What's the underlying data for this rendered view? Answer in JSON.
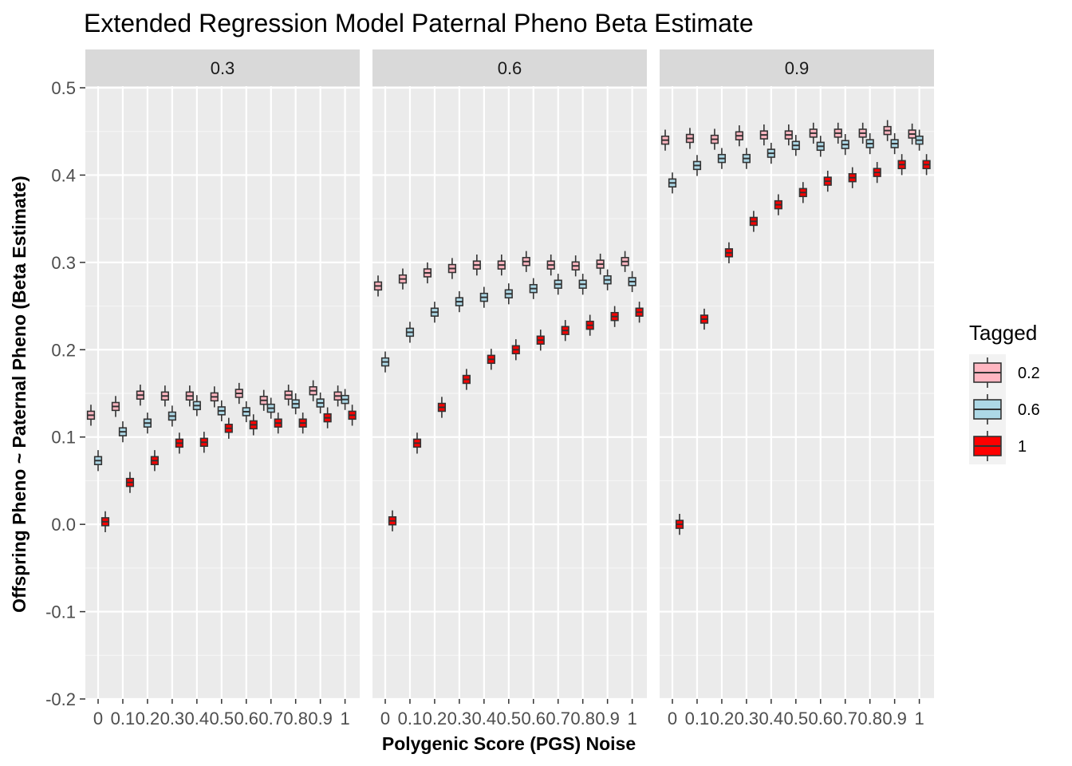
{
  "chart_data": {
    "type": "boxplot",
    "title": "Extended Regression Model Paternal Pheno Beta Estimate",
    "xlabel": "Polygenic Score (PGS) Noise",
    "ylabel": "Offspring Pheno ~ Paternal Pheno (Beta Estimate)",
    "ylim": [
      -0.2,
      0.5
    ],
    "y_ticks": [
      "-0.2",
      "-0.1",
      "0.0",
      "0.1",
      "0.2",
      "0.3",
      "0.4",
      "0.5"
    ],
    "categories": [
      "0",
      "0.1",
      "0.2",
      "0.3",
      "0.4",
      "0.5",
      "0.6",
      "0.7",
      "0.8",
      "0.9",
      "1"
    ],
    "facets": [
      "0.3",
      "0.6",
      "0.9"
    ],
    "legend": {
      "title": "Tagged",
      "position": "right",
      "entries": [
        {
          "label": "0.2",
          "color": "#FFB6C1"
        },
        {
          "label": "0.6",
          "color": "#ADD8E6"
        },
        {
          "label": "1",
          "color": "#FF0000"
        }
      ]
    },
    "grid": true,
    "series": [
      {
        "name": "0.2",
        "color": "#FFB6C1",
        "medians": {
          "0.3": [
            0.125,
            0.135,
            0.148,
            0.147,
            0.147,
            0.146,
            0.15,
            0.142,
            0.148,
            0.153,
            0.147
          ],
          "0.6": [
            0.273,
            0.281,
            0.288,
            0.293,
            0.297,
            0.297,
            0.301,
            0.297,
            0.296,
            0.298,
            0.301
          ],
          "0.9": [
            0.44,
            0.442,
            0.441,
            0.445,
            0.446,
            0.446,
            0.448,
            0.448,
            0.448,
            0.451,
            0.447
          ]
        }
      },
      {
        "name": "0.6",
        "color": "#ADD8E6",
        "medians": {
          "0.3": [
            0.073,
            0.106,
            0.116,
            0.124,
            0.136,
            0.13,
            0.129,
            0.133,
            0.138,
            0.139,
            0.143
          ],
          "0.6": [
            0.186,
            0.22,
            0.243,
            0.255,
            0.26,
            0.264,
            0.27,
            0.275,
            0.275,
            0.28,
            0.278
          ],
          "0.9": [
            0.391,
            0.411,
            0.419,
            0.419,
            0.425,
            0.434,
            0.433,
            0.435,
            0.436,
            0.436,
            0.44
          ]
        }
      },
      {
        "name": "1",
        "color": "#FF0000",
        "medians": {
          "0.3": [
            0.003,
            0.048,
            0.073,
            0.093,
            0.094,
            0.11,
            0.114,
            0.116,
            0.116,
            0.122,
            0.125
          ],
          "0.6": [
            0.004,
            0.093,
            0.134,
            0.166,
            0.189,
            0.2,
            0.211,
            0.222,
            0.228,
            0.238,
            0.243
          ],
          "0.9": [
            0.0,
            0.235,
            0.311,
            0.347,
            0.366,
            0.38,
            0.393,
            0.397,
            0.403,
            0.412,
            0.412
          ]
        }
      }
    ]
  }
}
